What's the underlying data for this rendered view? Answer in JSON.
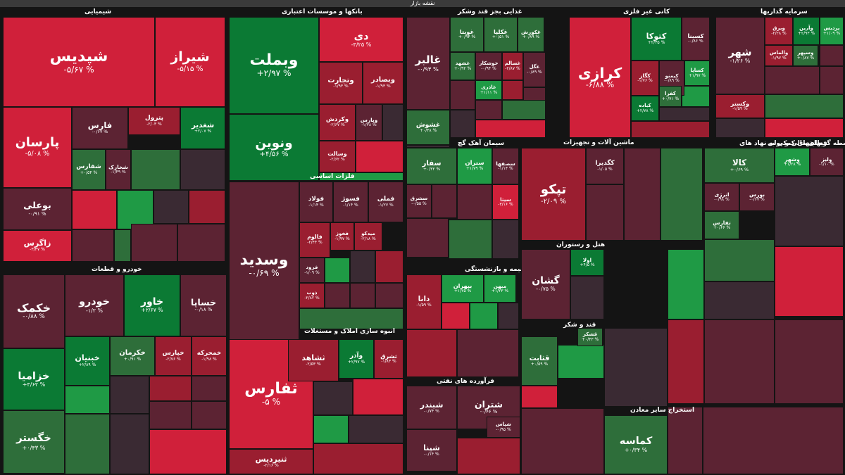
{
  "header": {
    "title": "نقشه بازار"
  },
  "colors": {
    "pos3": "#0b7a34",
    "pos2": "#1f9a45",
    "pos1": "#2e6e3a",
    "neg3": "#d0203a",
    "neg2": "#9a1e30",
    "neg1": "#5c2333",
    "flat": "#3a2a33"
  },
  "chart_data": {
    "type": "heatmap",
    "title": "نقشه بازار",
    "sectors": [
      {
        "name": "شیمیایی",
        "tiles": [
          {
            "symbol": "شپدیس",
            "change": "-۵/۶۷ %"
          },
          {
            "symbol": "شیراز",
            "change": "-۵/۱۵ %"
          },
          {
            "symbol": "پارسان",
            "change": "-۵/۰۸ %"
          },
          {
            "symbol": "فارس",
            "change": "-۰/۶۷ %"
          },
          {
            "symbol": "پترول",
            "change": "-۲/۰۳ %"
          },
          {
            "symbol": "شغدیر",
            "change": "+۲/۰۷ %"
          },
          {
            "symbol": "شفارس",
            "change": "+۰/۵۴ %"
          },
          {
            "symbol": "شخارک",
            "change": "-۱/۴۹ %"
          },
          {
            "symbol": "بوعلی",
            "change": "-۰/۹۱ %"
          },
          {
            "symbol": "زاگرس",
            "change": "-۳/۴۷ %"
          }
        ]
      },
      {
        "name": "بانکها و موسسات اعتباری",
        "tiles": [
          {
            "symbol": "وبملت",
            "change": "+۲/۹۷ %"
          },
          {
            "symbol": "دی",
            "change": "-۳/۲۵ %"
          },
          {
            "symbol": "ونوین",
            "change": "+۴/۵۶ %"
          },
          {
            "symbol": "وتجارت",
            "change": "-۱/۹۳ %"
          },
          {
            "symbol": "وبصادر",
            "change": "-۱/۹۳ %"
          },
          {
            "symbol": "وکردش",
            "change": "-۲/۶۷ %"
          },
          {
            "symbol": "وپارس",
            "change": "-۱/۳۸ %"
          },
          {
            "symbol": "وسالت",
            "change": "-۲/۶۲ %"
          }
        ]
      },
      {
        "name": "غذایی بجز قند وشکر",
        "tiles": [
          {
            "symbol": "غالبر",
            "change": "-۰/۹۳ %"
          },
          {
            "symbol": "غویتا",
            "change": "+۰/۹۴ %"
          },
          {
            "symbol": "غکلپا",
            "change": "+۰/۵۱ %"
          },
          {
            "symbol": "غکورش",
            "change": "+۰/۸۹ %"
          },
          {
            "symbol": "غشهد",
            "change": "+۰/۹۲ %"
          },
          {
            "symbol": "خوشکار",
            "change": "-۰/۹۴ %"
          },
          {
            "symbol": "غسالم",
            "change": "-۲/۸۷ %"
          },
          {
            "symbol": "غگل",
            "change": "-۰/۸۹ %"
          },
          {
            "symbol": "غاذری",
            "change": "+۱/۱۱ %"
          },
          {
            "symbol": "غشوش",
            "change": "+۰/۴۸ %"
          }
        ]
      },
      {
        "name": "کانی غیر فلزی",
        "tiles": [
          {
            "symbol": "کرازی",
            "change": "-۶/۸۸ %"
          },
          {
            "symbol": "کتوکا",
            "change": "+۲/۳۵ %"
          },
          {
            "symbol": "کسینا",
            "change": "-۰/۸۶ %"
          },
          {
            "symbol": "کگاز",
            "change": "-۱/۷۶ %"
          },
          {
            "symbol": "کیمنو",
            "change": "-۰/۸۹ %"
          },
          {
            "symbol": "کساپا",
            "change": "+۱/۹۷ %"
          },
          {
            "symbol": "کفرا",
            "change": "+۰/۷۱ %"
          },
          {
            "symbol": "کباده",
            "change": "+۲/۷۸ %"
          }
        ]
      },
      {
        "name": "سرمایه گذاریها",
        "tiles": [
          {
            "symbol": "شهر",
            "change": "-۱/۲۶ %"
          },
          {
            "symbol": "وبرق",
            "change": "-۲/۲۸ %"
          },
          {
            "symbol": "وآرین",
            "change": "+۲/۹۳ %"
          },
          {
            "symbol": "پردیس",
            "change": "+۱/۰۹ %"
          },
          {
            "symbol": "والماس",
            "change": "-۱/۹۷ %"
          },
          {
            "symbol": "وسپهر",
            "change": "+۰/۸۷ %"
          },
          {
            "symbol": "وکستر",
            "change": "-۱/۵۹ %"
          }
        ]
      },
      {
        "name": "خودرو و قطعات",
        "tiles": [
          {
            "symbol": "خکمک",
            "change": "-۰/۸۸ %"
          },
          {
            "symbol": "خودرو",
            "change": "-۱/۲ %"
          },
          {
            "symbol": "خاور",
            "change": "+۲/۶۷ %"
          },
          {
            "symbol": "خساپا",
            "change": "-۰/۱۸ %"
          },
          {
            "symbol": "خزامیا",
            "change": "+۳/۶۲ %"
          },
          {
            "symbol": "خگستر",
            "change": "+۰/۴۳ %"
          },
          {
            "symbol": "خبنیان",
            "change": "+۲/۸۹ %"
          },
          {
            "symbol": "خکرمان",
            "change": "+۰/۹۱ %"
          },
          {
            "symbol": "خپارس",
            "change": "-۲/۷۶ %"
          },
          {
            "symbol": "خمحرکه",
            "change": "-۱/۹۸ %"
          }
        ]
      },
      {
        "name": "فلزات اساسی",
        "tiles": [
          {
            "symbol": "وسدید",
            "change": "-۰/۶۹ %"
          },
          {
            "symbol": "فولاد",
            "change": "-۱/۱۴ %"
          },
          {
            "symbol": "فسوژ",
            "change": "-۱/۱۴ %"
          },
          {
            "symbol": "فملی",
            "change": "-۱/۲۷ %"
          },
          {
            "symbol": "فالوم",
            "change": "-۲/۴۴ %"
          },
          {
            "symbol": "فخوز",
            "change": "-۱/۹۷ %"
          },
          {
            "symbol": "میدکو",
            "change": "-۲/۱۸ %"
          },
          {
            "symbol": "فرود",
            "change": "-۱/۰۹ %"
          },
          {
            "symbol": "ذوب",
            "change": "-۲/۸۲ %"
          }
        ]
      },
      {
        "name": "ماشین آلات و تجهیزات",
        "tiles": [
          {
            "symbol": "تپکو",
            "change": "-۲/۰۹ %"
          },
          {
            "symbol": "کگدیرا",
            "change": "-۱/۰۵ %"
          }
        ]
      },
      {
        "name": "انبوه سازی املاک و مستغلات",
        "tiles": [
          {
            "symbol": "ثفارس",
            "change": "-۵ %"
          },
          {
            "symbol": "ثشاهد",
            "change": "-۲/۵۳ %"
          },
          {
            "symbol": "وآذر",
            "change": "+۲/۹۷ %"
          },
          {
            "symbol": "ثشرق",
            "change": "-۱/۸۳ %"
          },
          {
            "symbol": "ثنیردیس",
            "change": "-۲/۱۶ %"
          }
        ]
      },
      {
        "name": "سیمان آهک گچ",
        "tiles": [
          {
            "symbol": "سفار",
            "change": "+۰/۳۲ %"
          },
          {
            "symbol": "ستران",
            "change": "+۱/۷۹ %"
          },
          {
            "symbol": "سصفها",
            "change": "-۱/۱۴ %"
          },
          {
            "symbol": "سشرق",
            "change": "-۰/۵۵ %"
          },
          {
            "symbol": "سیتا",
            "change": "-۳/۱۶ %"
          }
        ]
      },
      {
        "name": "بیمه و بازنشستگی",
        "tiles": [
          {
            "symbol": "دانا",
            "change": "-۱/۵۹ %"
          },
          {
            "symbol": "بپهران",
            "change": "+۱/۲۵ %"
          },
          {
            "symbol": "میهن",
            "change": "+۱/۲۳ %"
          }
        ]
      },
      {
        "name": "هتل و رستوران",
        "tiles": [
          {
            "symbol": "گشان",
            "change": "-۰/۷۵ %"
          },
          {
            "symbol": "اولا",
            "change": "+۴/۵ %"
          }
        ]
      },
      {
        "name": "قند و شکر",
        "tiles": [
          {
            "symbol": "قثابت",
            "change": "+۰/۵۹ %"
          },
          {
            "symbol": "قشکر",
            "change": "+۰/۴۳ %"
          }
        ]
      },
      {
        "name": "فرآورده های نفتی",
        "tiles": [
          {
            "symbol": "شبندر",
            "change": "-۰/۷۴ %"
          },
          {
            "symbol": "شپنا",
            "change": "-۰/۱۴ %"
          },
          {
            "symbol": "شتران",
            "change": "-۰/۴۶ %"
          },
          {
            "symbol": "شپاس",
            "change": "-۰/۹۵ %"
          }
        ]
      },
      {
        "name": "استخراج سایر معادن",
        "tiles": [
          {
            "symbol": "کماسه",
            "change": "+۰/۳۴ %"
          }
        ]
      },
      {
        "name": "واسطه گریهای مالی و پولی",
        "tiles": [
          {
            "symbol": "وشهر",
            "change": "+۱/۲۸ %"
          },
          {
            "symbol": "ولیز",
            "change": "-۱/۱۰ %"
          }
        ]
      },
      {
        "name": "فعالیتهای کمکی به نهاد های",
        "tiles": [
          {
            "symbol": "کالا",
            "change": "+۰/۶۹ %"
          },
          {
            "symbol": "انرژی",
            "change": "-۰/۹۸ %"
          },
          {
            "symbol": "بورس",
            "change": "-۰/۶۷ %"
          },
          {
            "symbol": "تفارس",
            "change": "+۰/۶۶ %"
          }
        ]
      }
    ]
  }
}
